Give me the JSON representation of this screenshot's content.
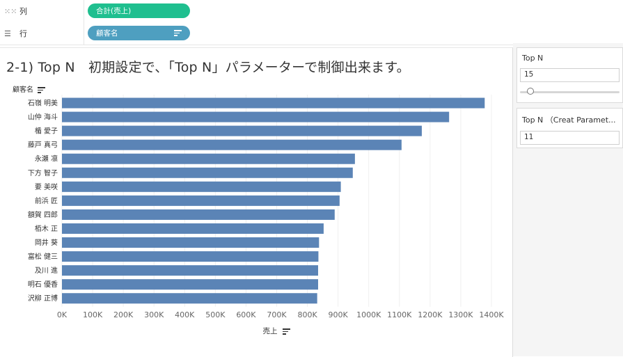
{
  "shelves": {
    "columns": {
      "label": "列",
      "pill": "合計(売上)",
      "pill_color": "#1fbf8f"
    },
    "rows": {
      "label": "行",
      "pill": "顧客名",
      "pill_color": "#4e9fc0"
    }
  },
  "sheet": {
    "title": "2-1) Top N　初期設定で、「Top N」パラメーターで制御出来ます。",
    "row_header": "顧客名",
    "x_axis_title": "売上"
  },
  "parameters": [
    {
      "title": "Top N",
      "value": "15",
      "has_slider": true,
      "slider_fraction": 0.1
    },
    {
      "title": "Top N （Creat Paramet...",
      "value": "11",
      "has_slider": false
    }
  ],
  "colors": {
    "bar": "#5b84b6",
    "grid": "#efefef",
    "tick_text": "#666666"
  },
  "chart_data": {
    "type": "bar",
    "orientation": "horizontal",
    "categories": [
      "石嶺 明美",
      "山仲 海斗",
      "楯 愛子",
      "藤戸 真弓",
      "永瀬 凛",
      "下方 智子",
      "要 美咲",
      "前浜 匠",
      "額賀 四郎",
      "栢木 正",
      "岡井 葵",
      "富松 健三",
      "及川 進",
      "明石 優香",
      "沢柳 正博"
    ],
    "values": [
      1378000,
      1262000,
      1173000,
      1107000,
      955000,
      948000,
      909000,
      905000,
      889000,
      853000,
      838000,
      836000,
      835000,
      835000,
      832000
    ],
    "xlim": [
      0,
      1400000
    ],
    "xticks": [
      0,
      100000,
      200000,
      300000,
      400000,
      500000,
      600000,
      700000,
      800000,
      900000,
      1000000,
      1100000,
      1200000,
      1300000,
      1400000
    ],
    "xtick_labels": [
      "0K",
      "100K",
      "200K",
      "300K",
      "400K",
      "500K",
      "600K",
      "700K",
      "800K",
      "900K",
      "1000K",
      "1100K",
      "1200K",
      "1300K",
      "1400K"
    ],
    "xlabel": "売上",
    "ylabel": "顧客名",
    "grid": true
  }
}
